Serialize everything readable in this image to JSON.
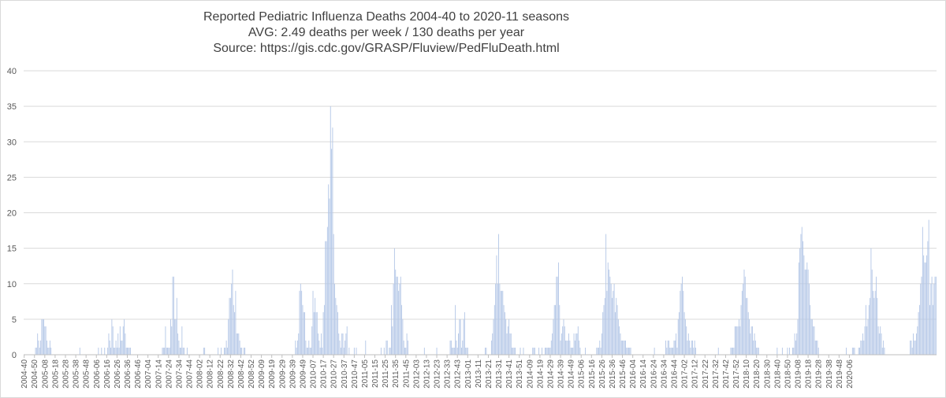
{
  "chart_data": {
    "type": "bar",
    "title": "Reported Pediatric Influenza Deaths 2004-40 to 2020-11 seasons",
    "subtitle": "AVG: 2.49 deaths per week / 130 deaths per year",
    "source": "Source: https://gis.cdc.gov/GRASP/Fluview/PedFluDeath.html",
    "xlabel": "",
    "ylabel": "",
    "ylim": [
      0,
      40
    ],
    "yticks": [
      0,
      5,
      10,
      15,
      20,
      25,
      30,
      35,
      40
    ],
    "gridlines": true,
    "legend": "none",
    "bar_color": "#b4c7e7",
    "x_tick_labels": [
      "2004-40",
      "2004-50",
      "2005-08",
      "2005-18",
      "2005-28",
      "2005-38",
      "2005-48",
      "2006-06",
      "2006-16",
      "2006-26",
      "2006-36",
      "2006-46",
      "2007-04",
      "2007-14",
      "2007-24",
      "2007-34",
      "2007-44",
      "2008-02",
      "2008-12",
      "2008-22",
      "2008-32",
      "2008-42",
      "2008-52",
      "2009-09",
      "2009-19",
      "2009-29",
      "2009-39",
      "2009-49",
      "2010-07",
      "2010-17",
      "2010-27",
      "2010-37",
      "2010-47",
      "2011-05",
      "2011-15",
      "2011-25",
      "2011-35",
      "2011-45",
      "2012-03",
      "2012-13",
      "2012-23",
      "2012-33",
      "2012-43",
      "2013-01",
      "2013-11",
      "2013-21",
      "2013-31",
      "2013-41",
      "2013-51",
      "2014-09",
      "2014-19",
      "2014-29",
      "2014-39",
      "2014-49",
      "2015-06",
      "2015-16",
      "2015-26",
      "2015-36",
      "2015-46",
      "2016-04",
      "2016-14",
      "2016-24",
      "2016-34",
      "2016-44",
      "2017-02",
      "2017-12",
      "2017-22",
      "2017-32",
      "2017-42",
      "2017-52",
      "2018-10",
      "2018-20",
      "2018-30",
      "2018-40",
      "2018-50",
      "2019-08",
      "2019-18",
      "2019-28",
      "2019-38",
      "2019-48",
      "2020-06"
    ],
    "weeks_per_label": 10,
    "values": [
      0,
      0,
      0,
      0,
      0,
      0,
      0,
      0,
      0,
      0,
      0,
      1,
      1,
      3,
      2,
      1,
      2,
      5,
      5,
      5,
      4,
      4,
      2,
      1,
      1,
      2,
      1,
      0,
      0,
      0,
      0,
      0,
      0,
      0,
      0,
      0,
      0,
      0,
      0,
      0,
      0,
      0,
      0,
      0,
      0,
      0,
      0,
      0,
      0,
      0,
      0,
      0,
      0,
      0,
      1,
      0,
      0,
      0,
      0,
      0,
      0,
      0,
      0,
      0,
      0,
      0,
      0,
      0,
      0,
      0,
      0,
      0,
      1,
      0,
      0,
      1,
      0,
      0,
      1,
      0,
      0,
      1,
      3,
      2,
      1,
      5,
      4,
      1,
      1,
      2,
      1,
      3,
      1,
      4,
      2,
      2,
      4,
      5,
      3,
      1,
      1,
      1,
      1,
      1,
      0,
      0,
      0,
      0,
      0,
      0,
      0,
      0,
      0,
      0,
      0,
      0,
      0,
      0,
      0,
      0,
      0,
      0,
      0,
      0,
      0,
      0,
      0,
      0,
      0,
      0,
      0,
      0,
      0,
      0,
      1,
      1,
      1,
      4,
      1,
      1,
      1,
      1,
      5,
      4,
      11,
      11,
      5,
      5,
      8,
      3,
      2,
      1,
      1,
      4,
      1,
      1,
      0,
      0,
      1,
      0,
      0,
      0,
      0,
      0,
      0,
      0,
      0,
      0,
      0,
      0,
      0,
      0,
      0,
      0,
      1,
      1,
      0,
      0,
      0,
      0,
      0,
      0,
      0,
      0,
      0,
      0,
      0,
      0,
      1,
      0,
      0,
      1,
      0,
      0,
      1,
      1,
      2,
      1,
      5,
      8,
      8,
      10,
      12,
      7,
      6,
      9,
      3,
      3,
      3,
      2,
      1,
      1,
      0,
      1,
      1,
      0,
      0,
      0,
      0,
      0,
      0,
      0,
      0,
      0,
      0,
      0,
      0,
      0,
      0,
      0,
      0,
      0,
      0,
      0,
      0,
      0,
      0,
      0,
      0,
      0,
      0,
      0,
      0,
      0,
      0,
      0,
      0,
      0,
      0,
      0,
      0,
      0,
      0,
      0,
      0,
      0,
      0,
      0,
      0,
      0,
      0,
      0,
      0,
      2,
      1,
      2,
      3,
      9,
      10,
      9,
      7,
      6,
      6,
      2,
      1,
      1,
      2,
      1,
      1,
      4,
      9,
      6,
      8,
      6,
      6,
      3,
      2,
      1,
      3,
      1,
      6,
      7,
      16,
      16,
      18,
      24,
      22,
      35,
      29,
      32,
      17,
      10,
      8,
      7,
      6,
      3,
      2,
      1,
      3,
      3,
      1,
      2,
      3,
      4,
      0,
      1,
      0,
      0,
      0,
      0,
      1,
      0,
      1,
      0,
      0,
      0,
      0,
      0,
      0,
      0,
      0,
      2,
      0,
      0,
      0,
      0,
      0,
      0,
      0,
      0,
      0,
      0,
      0,
      0,
      0,
      0,
      1,
      0,
      0,
      1,
      0,
      2,
      2,
      0,
      1,
      1,
      7,
      4,
      10,
      15,
      12,
      11,
      11,
      9,
      10,
      11,
      7,
      5,
      2,
      1,
      1,
      3,
      2,
      0,
      0,
      0,
      0,
      0,
      0,
      0,
      0,
      0,
      0,
      0,
      0,
      0,
      0,
      0,
      1,
      0,
      0,
      0,
      0,
      0,
      0,
      0,
      0,
      0,
      0,
      0,
      1,
      0,
      0,
      0,
      0,
      0,
      0,
      0,
      0,
      0,
      0,
      0,
      0,
      2,
      2,
      1,
      1,
      1,
      7,
      2,
      1,
      3,
      5,
      5,
      1,
      2,
      5,
      6,
      1,
      1,
      1,
      0,
      0,
      0,
      0,
      0,
      0,
      0,
      0,
      0,
      0,
      0,
      0,
      0,
      0,
      0,
      0,
      1,
      1,
      0,
      0,
      0,
      0,
      2,
      3,
      5,
      7,
      10,
      14,
      10,
      17,
      10,
      9,
      9,
      9,
      7,
      6,
      5,
      3,
      4,
      5,
      3,
      3,
      1,
      1,
      1,
      1,
      0,
      0,
      0,
      0,
      1,
      0,
      0,
      1,
      0,
      0,
      0,
      0,
      0,
      0,
      0,
      0,
      1,
      1,
      1,
      0,
      0,
      0,
      1,
      0,
      0,
      1,
      0,
      0,
      1,
      1,
      1,
      1,
      1,
      1,
      2,
      3,
      5,
      7,
      7,
      11,
      11,
      13,
      7,
      2,
      3,
      4,
      5,
      4,
      2,
      2,
      2,
      3,
      2,
      1,
      1,
      1,
      3,
      2,
      3,
      3,
      4,
      2,
      1,
      0,
      0,
      0,
      0,
      1,
      0,
      0,
      0,
      0,
      0,
      0,
      0,
      0,
      0,
      0,
      1,
      1,
      1,
      2,
      1,
      3,
      6,
      7,
      8,
      17,
      9,
      13,
      12,
      11,
      10,
      8,
      9,
      10,
      6,
      8,
      7,
      5,
      4,
      3,
      2,
      2,
      2,
      2,
      2,
      1,
      1,
      1,
      1,
      1,
      0,
      0,
      0,
      0,
      0,
      0,
      0,
      0,
      0,
      0,
      0,
      0,
      0,
      0,
      0,
      0,
      0,
      0,
      0,
      0,
      0,
      0,
      1,
      0,
      0,
      0,
      0,
      0,
      0,
      0,
      0,
      0,
      0,
      2,
      1,
      2,
      2,
      1,
      1,
      1,
      1,
      2,
      2,
      3,
      1,
      5,
      6,
      9,
      10,
      11,
      9,
      6,
      5,
      4,
      2,
      3,
      2,
      1,
      2,
      2,
      1,
      2,
      1,
      0,
      0,
      0,
      0,
      0,
      0,
      0,
      0,
      0,
      0,
      0,
      0,
      0,
      0,
      0,
      0,
      0,
      0,
      0,
      0,
      0,
      1,
      0,
      0,
      0,
      0,
      0,
      0,
      0,
      0,
      0,
      0,
      0,
      1,
      1,
      1,
      1,
      4,
      4,
      4,
      4,
      5,
      4,
      7,
      9,
      10,
      12,
      11,
      8,
      8,
      6,
      5,
      3,
      4,
      4,
      2,
      3,
      2,
      1,
      1,
      1,
      0,
      0,
      0,
      0,
      0,
      0,
      0,
      0,
      0,
      0,
      0,
      0,
      0,
      0,
      0,
      0,
      0,
      1,
      0,
      0,
      0,
      0,
      1,
      0,
      0,
      0,
      0,
      1,
      0,
      1,
      0,
      0,
      1,
      1,
      3,
      2,
      3,
      5,
      13,
      15,
      17,
      18,
      16,
      14,
      12,
      12,
      13,
      12,
      10,
      7,
      5,
      5,
      4,
      4,
      2,
      2,
      2,
      1,
      0,
      0,
      0,
      0,
      0,
      0,
      0,
      0,
      0,
      0,
      0,
      0,
      0,
      0,
      0,
      0,
      0,
      0,
      0,
      0,
      0,
      0,
      0,
      0,
      0,
      0,
      1,
      0,
      0,
      0,
      0,
      0,
      1,
      1,
      1,
      0,
      0,
      0,
      1,
      1,
      2,
      2,
      3,
      2,
      4,
      7,
      4,
      5,
      7,
      8,
      15,
      12,
      9,
      8,
      9,
      11,
      8,
      4,
      3,
      4,
      3,
      1,
      2,
      1,
      0,
      0,
      0,
      0,
      0,
      0,
      0,
      0,
      0,
      0,
      0,
      0,
      0,
      0,
      0,
      0,
      0,
      0,
      0,
      0,
      0,
      0,
      0,
      0,
      2,
      2,
      1,
      3,
      2,
      2,
      3,
      4,
      6,
      7,
      10,
      11,
      18,
      14,
      13,
      13,
      14,
      16,
      19,
      7,
      10,
      11,
      7,
      10,
      11,
      11
    ]
  }
}
